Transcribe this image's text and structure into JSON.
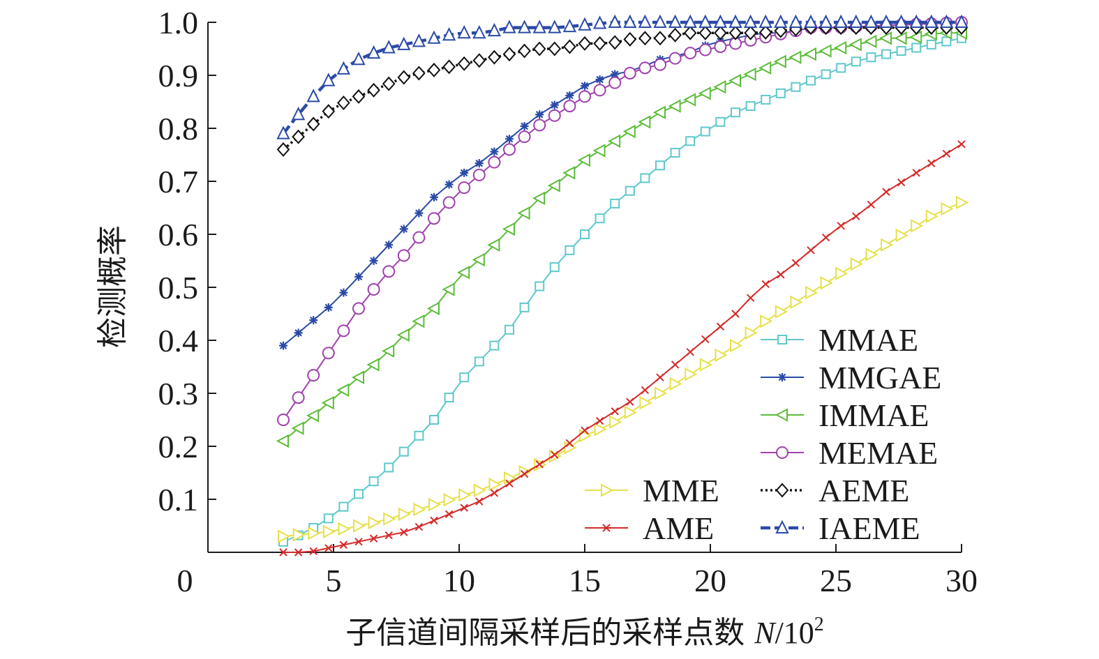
{
  "chart_data": {
    "type": "line",
    "title": "",
    "xlabel": "子信道间隔采样后的采样点数 N/10²",
    "xlabel_prefix": "子信道间隔采样后的采样点数 ",
    "xlabel_var": "N",
    "xlabel_suffix": "/10",
    "xlabel_sup": "2",
    "ylabel": "检测概率",
    "xlim": [
      0,
      30
    ],
    "ylim": [
      0,
      1.0
    ],
    "x_ticks": [
      0,
      5,
      10,
      15,
      20,
      25,
      30
    ],
    "y_ticks": [
      0.1,
      0.2,
      0.3,
      0.4,
      0.5,
      0.6,
      0.7,
      0.8,
      0.9,
      1.0
    ],
    "x_tick_labels": [
      "0",
      "5",
      "10",
      "15",
      "20",
      "25",
      "30"
    ],
    "y_tick_labels": [
      "0.1",
      "0.2",
      "0.3",
      "0.4",
      "0.5",
      "0.6",
      "0.7",
      "0.8",
      "0.9",
      "1.0"
    ],
    "grid": false,
    "x_start": 3.0,
    "x_end": 30.0,
    "num_points": 46,
    "series": [
      {
        "name": "MMAE",
        "color": "#5ec8cc",
        "marker": "square",
        "dash": "solid",
        "anchors": [
          [
            3,
            0.02
          ],
          [
            4,
            0.04
          ],
          [
            5,
            0.07
          ],
          [
            6,
            0.11
          ],
          [
            7,
            0.15
          ],
          [
            8,
            0.2
          ],
          [
            9,
            0.25
          ],
          [
            10,
            0.32
          ],
          [
            11,
            0.37
          ],
          [
            12,
            0.42
          ],
          [
            13,
            0.49
          ],
          [
            14,
            0.55
          ],
          [
            15,
            0.6
          ],
          [
            16,
            0.65
          ],
          [
            17,
            0.69
          ],
          [
            18,
            0.73
          ],
          [
            19,
            0.77
          ],
          [
            20,
            0.8
          ],
          [
            21,
            0.83
          ],
          [
            22,
            0.85
          ],
          [
            23,
            0.87
          ],
          [
            24,
            0.89
          ],
          [
            25,
            0.91
          ],
          [
            26,
            0.93
          ],
          [
            27,
            0.94
          ],
          [
            28,
            0.95
          ],
          [
            29,
            0.96
          ],
          [
            30,
            0.97
          ]
        ]
      },
      {
        "name": "MMGAE",
        "color": "#2a4aa8",
        "marker": "star",
        "dash": "solid",
        "anchors": [
          [
            3,
            0.39
          ],
          [
            4,
            0.43
          ],
          [
            5,
            0.47
          ],
          [
            6,
            0.52
          ],
          [
            7,
            0.57
          ],
          [
            8,
            0.62
          ],
          [
            9,
            0.67
          ],
          [
            10,
            0.71
          ],
          [
            11,
            0.74
          ],
          [
            12,
            0.78
          ],
          [
            13,
            0.82
          ],
          [
            14,
            0.85
          ],
          [
            15,
            0.88
          ],
          [
            16,
            0.9
          ],
          [
            17,
            0.91
          ],
          [
            18,
            0.93
          ],
          [
            19,
            0.94
          ],
          [
            20,
            0.96
          ],
          [
            21,
            0.97
          ],
          [
            22,
            0.98
          ],
          [
            23,
            0.98
          ],
          [
            24,
            0.99
          ],
          [
            25,
            0.99
          ],
          [
            30,
            1.0
          ]
        ]
      },
      {
        "name": "IMMAE",
        "color": "#5cbc3a",
        "marker": "triangle-left",
        "dash": "solid",
        "anchors": [
          [
            3,
            0.21
          ],
          [
            4,
            0.25
          ],
          [
            5,
            0.29
          ],
          [
            6,
            0.33
          ],
          [
            7,
            0.37
          ],
          [
            8,
            0.42
          ],
          [
            9,
            0.46
          ],
          [
            10,
            0.52
          ],
          [
            11,
            0.56
          ],
          [
            12,
            0.61
          ],
          [
            13,
            0.66
          ],
          [
            14,
            0.7
          ],
          [
            15,
            0.74
          ],
          [
            16,
            0.77
          ],
          [
            17,
            0.8
          ],
          [
            18,
            0.83
          ],
          [
            19,
            0.85
          ],
          [
            20,
            0.87
          ],
          [
            21,
            0.89
          ],
          [
            22,
            0.91
          ],
          [
            23,
            0.93
          ],
          [
            24,
            0.94
          ],
          [
            25,
            0.95
          ],
          [
            26,
            0.96
          ],
          [
            27,
            0.97
          ],
          [
            28,
            0.97
          ],
          [
            29,
            0.98
          ],
          [
            30,
            0.98
          ]
        ]
      },
      {
        "name": "MEMAE",
        "color": "#a040ae",
        "marker": "circle",
        "dash": "solid",
        "anchors": [
          [
            3,
            0.25
          ],
          [
            4,
            0.32
          ],
          [
            5,
            0.39
          ],
          [
            6,
            0.46
          ],
          [
            7,
            0.52
          ],
          [
            8,
            0.57
          ],
          [
            9,
            0.63
          ],
          [
            10,
            0.68
          ],
          [
            11,
            0.72
          ],
          [
            12,
            0.76
          ],
          [
            13,
            0.8
          ],
          [
            14,
            0.83
          ],
          [
            15,
            0.86
          ],
          [
            16,
            0.88
          ],
          [
            17,
            0.91
          ],
          [
            18,
            0.92
          ],
          [
            19,
            0.94
          ],
          [
            20,
            0.95
          ],
          [
            21,
            0.96
          ],
          [
            22,
            0.97
          ],
          [
            23,
            0.98
          ],
          [
            24,
            0.99
          ],
          [
            25,
            0.99
          ],
          [
            30,
            1.0
          ]
        ]
      },
      {
        "name": "MME",
        "color": "#e6e04a",
        "marker": "triangle-right",
        "dash": "solid",
        "anchors": [
          [
            3,
            0.03
          ],
          [
            5,
            0.04
          ],
          [
            7,
            0.06
          ],
          [
            9,
            0.09
          ],
          [
            11,
            0.12
          ],
          [
            13,
            0.16
          ],
          [
            14.5,
            0.2
          ],
          [
            15,
            0.22
          ],
          [
            16,
            0.24
          ],
          [
            17,
            0.27
          ],
          [
            18,
            0.3
          ],
          [
            19,
            0.33
          ],
          [
            20,
            0.36
          ],
          [
            21,
            0.39
          ],
          [
            22,
            0.43
          ],
          [
            23,
            0.46
          ],
          [
            24,
            0.49
          ],
          [
            25,
            0.52
          ],
          [
            26,
            0.55
          ],
          [
            27,
            0.58
          ],
          [
            28,
            0.61
          ],
          [
            29,
            0.64
          ],
          [
            30,
            0.66
          ]
        ]
      },
      {
        "name": "AME",
        "color": "#d42a2a",
        "marker": "x",
        "dash": "solid",
        "anchors": [
          [
            3,
            0.0
          ],
          [
            4,
            0.0
          ],
          [
            5,
            0.01
          ],
          [
            6,
            0.02
          ],
          [
            7,
            0.03
          ],
          [
            8,
            0.04
          ],
          [
            9,
            0.06
          ],
          [
            10,
            0.08
          ],
          [
            11,
            0.1
          ],
          [
            12,
            0.13
          ],
          [
            13,
            0.16
          ],
          [
            14,
            0.19
          ],
          [
            15,
            0.23
          ],
          [
            16,
            0.26
          ],
          [
            17,
            0.29
          ],
          [
            18,
            0.33
          ],
          [
            19,
            0.37
          ],
          [
            20,
            0.41
          ],
          [
            21,
            0.45
          ],
          [
            22,
            0.5
          ],
          [
            23,
            0.53
          ],
          [
            24,
            0.57
          ],
          [
            25,
            0.61
          ],
          [
            26,
            0.64
          ],
          [
            27,
            0.68
          ],
          [
            28,
            0.71
          ],
          [
            29,
            0.74
          ],
          [
            30,
            0.77
          ]
        ]
      },
      {
        "name": "AEME",
        "color": "#111111",
        "marker": "diamond",
        "dash": "dotted",
        "anchors": [
          [
            3,
            0.76
          ],
          [
            4,
            0.8
          ],
          [
            5,
            0.84
          ],
          [
            6,
            0.86
          ],
          [
            7,
            0.88
          ],
          [
            8,
            0.9
          ],
          [
            9,
            0.91
          ],
          [
            10,
            0.92
          ],
          [
            11,
            0.93
          ],
          [
            12,
            0.94
          ],
          [
            13,
            0.95
          ],
          [
            14,
            0.95
          ],
          [
            15,
            0.96
          ],
          [
            16,
            0.96
          ],
          [
            17,
            0.97
          ],
          [
            18,
            0.97
          ],
          [
            19,
            0.98
          ],
          [
            20,
            0.98
          ],
          [
            22,
            0.98
          ],
          [
            24,
            0.99
          ],
          [
            26,
            0.99
          ],
          [
            28,
            0.99
          ],
          [
            30,
            0.99
          ]
        ]
      },
      {
        "name": "IAEME",
        "color": "#2a4aa8",
        "marker": "triangle-up",
        "dash": "dashed",
        "anchors": [
          [
            3,
            0.79
          ],
          [
            4,
            0.85
          ],
          [
            5,
            0.9
          ],
          [
            6,
            0.93
          ],
          [
            7,
            0.95
          ],
          [
            8,
            0.96
          ],
          [
            9,
            0.97
          ],
          [
            10,
            0.98
          ],
          [
            11,
            0.98
          ],
          [
            12,
            0.99
          ],
          [
            14,
            0.99
          ],
          [
            16,
            1.0
          ],
          [
            30,
            1.0
          ]
        ]
      }
    ],
    "legend": {
      "placement": "lower-right",
      "right_column": [
        "MMAE",
        "MMGAE",
        "IMMAE",
        "MEMAE",
        "AEME",
        "IAEME"
      ],
      "left_column": [
        "MME",
        "AME"
      ]
    }
  }
}
